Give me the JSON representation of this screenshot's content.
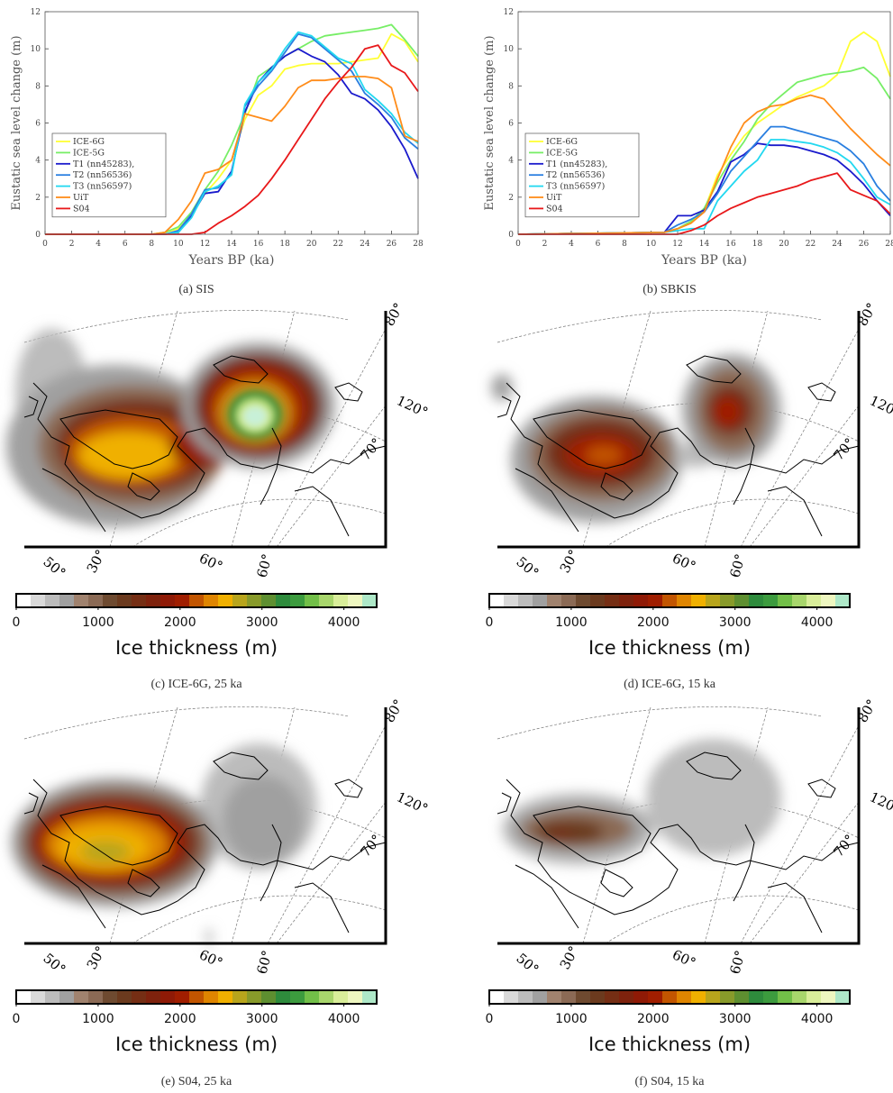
{
  "captions": {
    "a": "(a) SIS",
    "b": "(b) SBKIS",
    "c": "(c) ICE-6G, 25 ka",
    "d": "(d) ICE-6G, 15 ka",
    "e": "(e) S04, 25 ka",
    "f": "(f) S04, 15 ka"
  },
  "colorbar": {
    "title": "Ice thickness (m)",
    "ticks": [
      "0",
      "1000",
      "2000",
      "3000",
      "4000"
    ],
    "tick_values": [
      0,
      1000,
      2000,
      3000,
      4000
    ],
    "range": [
      0,
      4400
    ],
    "colors": [
      "#ffffff",
      "#d9d9d9",
      "#bcbcbc",
      "#a0a0a0",
      "#a0826e",
      "#8b6a55",
      "#6e4a30",
      "#6b3a1e",
      "#752e14",
      "#7e220d",
      "#8f1a06",
      "#a01e00",
      "#c25500",
      "#df8500",
      "#f0b000",
      "#b8a51c",
      "#889a2a",
      "#5e8f30",
      "#2e8b3c",
      "#3c9b3e",
      "#72bf48",
      "#a8d66c",
      "#d9ee9a",
      "#eef7c0",
      "#aee8c8"
    ]
  },
  "map_labels": {
    "lat_80": "80°",
    "lat_70": "70°",
    "lon_120": "120°",
    "lon_60_top": "60°",
    "lon_60_bottom": "60°",
    "lon_50": "50°",
    "lon_30": "30°"
  },
  "chart_data": [
    {
      "type": "line",
      "panel": "a",
      "xlabel": "Years BP (ka)",
      "ylabel": "Eustatic sea level change (m)",
      "xlim": [
        0,
        28
      ],
      "ylim": [
        0,
        12
      ],
      "xticks": [
        0,
        2,
        4,
        6,
        8,
        10,
        12,
        14,
        16,
        18,
        20,
        22,
        24,
        26,
        28
      ],
      "yticks": [
        0,
        2,
        4,
        6,
        8,
        10,
        12
      ],
      "grid": false,
      "legend_position": "bottom-left",
      "series": [
        {
          "name": "ICE-6G",
          "color": "#ffff33",
          "x": [
            0,
            8,
            9,
            10,
            11,
            12,
            13,
            14,
            15,
            16,
            17,
            18,
            19,
            20,
            21,
            22,
            23,
            24,
            25,
            26,
            27,
            28
          ],
          "y": [
            0,
            0,
            0.1,
            0.3,
            1.0,
            2.2,
            3.0,
            4.0,
            6.2,
            7.5,
            8.0,
            8.9,
            9.1,
            9.2,
            9.2,
            9.2,
            9.3,
            9.4,
            9.5,
            10.8,
            10.4,
            9.3
          ]
        },
        {
          "name": "ICE-5G",
          "color": "#77ee66",
          "x": [
            0,
            8,
            9,
            10,
            11,
            12,
            13,
            14,
            15,
            16,
            17,
            18,
            19,
            20,
            21,
            22,
            23,
            24,
            25,
            26,
            27,
            28
          ],
          "y": [
            0,
            0,
            0.1,
            0.4,
            1.2,
            2.4,
            3.4,
            4.8,
            6.5,
            8.5,
            9.0,
            9.6,
            10.0,
            10.4,
            10.7,
            10.8,
            10.9,
            11.0,
            11.1,
            11.3,
            10.5,
            9.6
          ]
        },
        {
          "name": "T1 (nn45283),",
          "color": "#1a1acc",
          "x": [
            0,
            8,
            9,
            10,
            11,
            12,
            13,
            14,
            15,
            16,
            17,
            18,
            19,
            20,
            21,
            22,
            23,
            24,
            25,
            26,
            27,
            28
          ],
          "y": [
            0,
            0,
            0,
            0.1,
            1.0,
            2.2,
            2.3,
            3.4,
            6.6,
            8.2,
            9.0,
            9.6,
            10.0,
            9.6,
            9.3,
            8.6,
            7.6,
            7.3,
            6.7,
            5.8,
            4.6,
            3.0
          ]
        },
        {
          "name": "T2 (nn56536)",
          "color": "#2a7fe0",
          "x": [
            0,
            8,
            9,
            10,
            11,
            12,
            13,
            14,
            15,
            16,
            17,
            18,
            19,
            20,
            21,
            22,
            23,
            24,
            25,
            26,
            27,
            28
          ],
          "y": [
            0,
            0,
            0,
            0.2,
            1.1,
            2.4,
            2.5,
            3.3,
            6.9,
            8.0,
            8.8,
            9.8,
            10.8,
            10.6,
            10.0,
            9.4,
            8.8,
            7.6,
            7.0,
            6.3,
            5.2,
            4.6
          ]
        },
        {
          "name": "T3 (nn56597)",
          "color": "#22d8f0",
          "x": [
            0,
            8,
            9,
            10,
            11,
            12,
            13,
            14,
            15,
            16,
            17,
            18,
            19,
            20,
            21,
            22,
            23,
            24,
            25,
            26,
            27,
            28
          ],
          "y": [
            0,
            0,
            0,
            0.1,
            0.9,
            2.3,
            2.6,
            3.2,
            7.0,
            8.2,
            8.9,
            10.0,
            10.9,
            10.7,
            10.1,
            9.5,
            9.2,
            7.8,
            7.2,
            6.5,
            5.5,
            4.9
          ]
        },
        {
          "name": "UiT",
          "color": "#ff8c1a",
          "x": [
            0,
            8,
            9,
            10,
            11,
            12,
            13,
            14,
            15,
            16,
            17,
            18,
            19,
            20,
            21,
            22,
            23,
            24,
            25,
            26,
            27,
            28
          ],
          "y": [
            0,
            0,
            0.1,
            0.8,
            1.8,
            3.3,
            3.5,
            4.0,
            6.5,
            6.3,
            6.1,
            6.9,
            7.9,
            8.3,
            8.3,
            8.4,
            8.5,
            8.5,
            8.4,
            7.9,
            5.3,
            5.0
          ]
        },
        {
          "name": "S04",
          "color": "#e8181a",
          "x": [
            0,
            10,
            11,
            12,
            13,
            14,
            15,
            16,
            17,
            18,
            19,
            20,
            21,
            22,
            23,
            24,
            25,
            26,
            27,
            28
          ],
          "y": [
            0,
            0,
            0,
            0.1,
            0.6,
            1.0,
            1.5,
            2.1,
            3.0,
            4.0,
            5.1,
            6.2,
            7.3,
            8.2,
            9.0,
            10.0,
            10.2,
            9.1,
            8.7,
            7.7
          ]
        }
      ]
    },
    {
      "type": "line",
      "panel": "b",
      "xlabel": "Years BP (ka)",
      "ylabel": "Eustatic sea level change (m)",
      "xlim": [
        0,
        28
      ],
      "ylim": [
        0,
        12
      ],
      "xticks": [
        0,
        2,
        4,
        6,
        8,
        10,
        12,
        14,
        16,
        18,
        20,
        22,
        24,
        26,
        28
      ],
      "yticks": [
        0,
        2,
        4,
        6,
        8,
        10,
        12
      ],
      "grid": false,
      "legend_position": "center-left",
      "series": [
        {
          "name": "ICE-6G",
          "color": "#ffff33",
          "x": [
            0,
            11,
            12,
            13,
            14,
            15,
            16,
            17,
            18,
            19,
            20,
            21,
            22,
            23,
            24,
            25,
            26,
            27,
            28
          ],
          "y": [
            0,
            0.1,
            0.3,
            0.6,
            1.3,
            3.2,
            4.3,
            5.3,
            6.0,
            6.5,
            7.0,
            7.4,
            7.7,
            8.0,
            8.6,
            10.4,
            10.9,
            10.4,
            8.5
          ]
        },
        {
          "name": "ICE-5G",
          "color": "#77ee66",
          "x": [
            0,
            11,
            12,
            13,
            14,
            15,
            16,
            17,
            18,
            19,
            20,
            21,
            22,
            23,
            24,
            25,
            26,
            27,
            28
          ],
          "y": [
            0,
            0.1,
            0.3,
            0.7,
            1.4,
            2.8,
            4.0,
            5.0,
            6.2,
            7.0,
            7.6,
            8.2,
            8.4,
            8.6,
            8.7,
            8.8,
            9.0,
            8.4,
            7.3
          ]
        },
        {
          "name": "T1 (nn45283),",
          "color": "#1a1acc",
          "x": [
            0,
            11,
            12,
            13,
            14,
            15,
            16,
            17,
            18,
            19,
            20,
            21,
            22,
            23,
            24,
            25,
            26,
            27,
            28
          ],
          "y": [
            0,
            0.1,
            1.0,
            1.0,
            1.3,
            2.3,
            3.9,
            4.3,
            4.9,
            4.8,
            4.8,
            4.7,
            4.5,
            4.3,
            4.0,
            3.4,
            2.7,
            1.8,
            1.0
          ]
        },
        {
          "name": "T2 (nn56536)",
          "color": "#2a7fe0",
          "x": [
            0,
            11,
            12,
            13,
            14,
            15,
            16,
            17,
            18,
            19,
            20,
            21,
            22,
            23,
            24,
            25,
            26,
            27,
            28
          ],
          "y": [
            0,
            0.1,
            0.5,
            0.8,
            1.2,
            2.2,
            3.4,
            4.2,
            5.0,
            5.8,
            5.8,
            5.6,
            5.4,
            5.2,
            5.0,
            4.5,
            3.8,
            2.6,
            1.8
          ]
        },
        {
          "name": "T3 (nn56597)",
          "color": "#22d8f0",
          "x": [
            0,
            11,
            12,
            13,
            14,
            15,
            16,
            17,
            18,
            19,
            20,
            21,
            22,
            23,
            24,
            25,
            26,
            27,
            28
          ],
          "y": [
            0,
            0.1,
            0.2,
            0.3,
            0.3,
            1.8,
            2.6,
            3.4,
            4.0,
            5.1,
            5.1,
            5.0,
            4.9,
            4.7,
            4.4,
            3.9,
            3.0,
            2.0,
            1.6
          ]
        },
        {
          "name": "UiT",
          "color": "#ff8c1a",
          "x": [
            0,
            11,
            12,
            13,
            14,
            15,
            16,
            17,
            18,
            19,
            20,
            21,
            22,
            23,
            24,
            25,
            26,
            27,
            28
          ],
          "y": [
            0,
            0.1,
            0.3,
            0.6,
            1.2,
            3.0,
            4.7,
            6.0,
            6.6,
            6.9,
            7.0,
            7.3,
            7.5,
            7.3,
            6.5,
            5.7,
            5.0,
            4.3,
            3.7
          ]
        },
        {
          "name": "S04",
          "color": "#e8181a",
          "x": [
            0,
            12,
            13,
            14,
            15,
            16,
            17,
            18,
            19,
            20,
            21,
            22,
            23,
            24,
            25,
            26,
            27,
            28
          ],
          "y": [
            0,
            0,
            0.2,
            0.5,
            1.0,
            1.4,
            1.7,
            2.0,
            2.2,
            2.4,
            2.6,
            2.9,
            3.1,
            3.3,
            2.4,
            2.1,
            1.8,
            1.1
          ]
        }
      ]
    }
  ]
}
